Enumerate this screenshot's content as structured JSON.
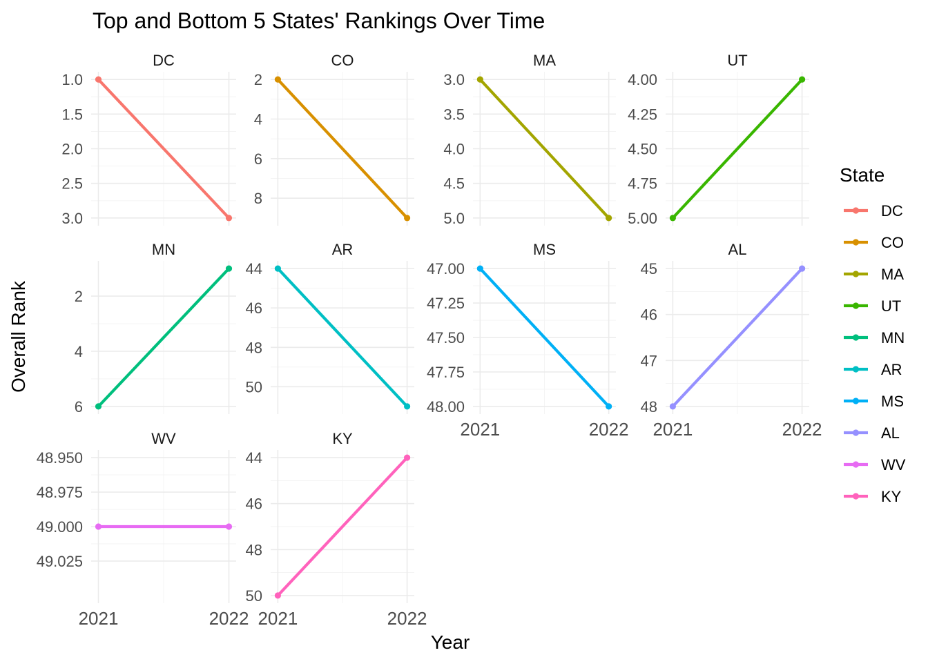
{
  "chart_data": {
    "type": "line",
    "title": "Top and Bottom 5 States' Rankings Over Time",
    "xlabel": "Year",
    "ylabel": "Overall Rank",
    "x_categories": [
      "2021",
      "2022"
    ],
    "legend": {
      "title": "State",
      "placement": "right",
      "entries": [
        "DC",
        "CO",
        "MA",
        "UT",
        "MN",
        "AR",
        "MS",
        "AL",
        "WV",
        "KY"
      ]
    },
    "y_reversed": true,
    "grid": true,
    "panels": [
      {
        "state": "DC",
        "color": "#F8766D",
        "values": [
          1,
          3
        ],
        "ylim": [
          1,
          3
        ],
        "yticks": [
          "1.0",
          "1.5",
          "2.0",
          "2.5",
          "3.0"
        ],
        "ytick_values": [
          1,
          1.5,
          2,
          2.5,
          3
        ]
      },
      {
        "state": "CO",
        "color": "#D89000",
        "values": [
          2,
          9
        ],
        "ylim": [
          2,
          9
        ],
        "yticks": [
          "2",
          "4",
          "6",
          "8"
        ],
        "ytick_values": [
          2,
          4,
          6,
          8
        ]
      },
      {
        "state": "MA",
        "color": "#A3A500",
        "values": [
          3,
          5
        ],
        "ylim": [
          3,
          5
        ],
        "yticks": [
          "3.0",
          "3.5",
          "4.0",
          "4.5",
          "5.0"
        ],
        "ytick_values": [
          3,
          3.5,
          4,
          4.5,
          5
        ]
      },
      {
        "state": "UT",
        "color": "#39B600",
        "values": [
          5,
          4
        ],
        "ylim": [
          4,
          5
        ],
        "yticks": [
          "4.00",
          "4.25",
          "4.50",
          "4.75",
          "5.00"
        ],
        "ytick_values": [
          4,
          4.25,
          4.5,
          4.75,
          5
        ]
      },
      {
        "state": "MN",
        "color": "#00BF7D",
        "values": [
          6,
          1
        ],
        "ylim": [
          1,
          6
        ],
        "yticks": [
          "2",
          "4",
          "6"
        ],
        "ytick_values": [
          2,
          4,
          6
        ]
      },
      {
        "state": "AR",
        "color": "#00BFC4",
        "values": [
          44,
          51
        ],
        "ylim": [
          44,
          51
        ],
        "yticks": [
          "44",
          "46",
          "48",
          "50"
        ],
        "ytick_values": [
          44,
          46,
          48,
          50
        ]
      },
      {
        "state": "MS",
        "color": "#00B0F6",
        "values": [
          47,
          48
        ],
        "ylim": [
          47,
          48
        ],
        "yticks": [
          "47.00",
          "47.25",
          "47.50",
          "47.75",
          "48.00"
        ],
        "ytick_values": [
          47,
          47.25,
          47.5,
          47.75,
          48
        ]
      },
      {
        "state": "AL",
        "color": "#9590FF",
        "values": [
          48,
          45
        ],
        "ylim": [
          45,
          48
        ],
        "yticks": [
          "45",
          "46",
          "47",
          "48"
        ],
        "ytick_values": [
          45,
          46,
          47,
          48
        ]
      },
      {
        "state": "WV",
        "color": "#E76BF3",
        "values": [
          49,
          49
        ],
        "ylim": [
          48.95,
          49.05
        ],
        "yticks": [
          "48.950",
          "48.975",
          "49.000",
          "49.025"
        ],
        "ytick_values": [
          48.95,
          48.975,
          49,
          49.025
        ]
      },
      {
        "state": "KY",
        "color": "#FF62BC",
        "values": [
          50,
          44
        ],
        "ylim": [
          44,
          50
        ],
        "yticks": [
          "44",
          "46",
          "48",
          "50"
        ],
        "ytick_values": [
          44,
          46,
          48,
          50
        ]
      }
    ]
  }
}
